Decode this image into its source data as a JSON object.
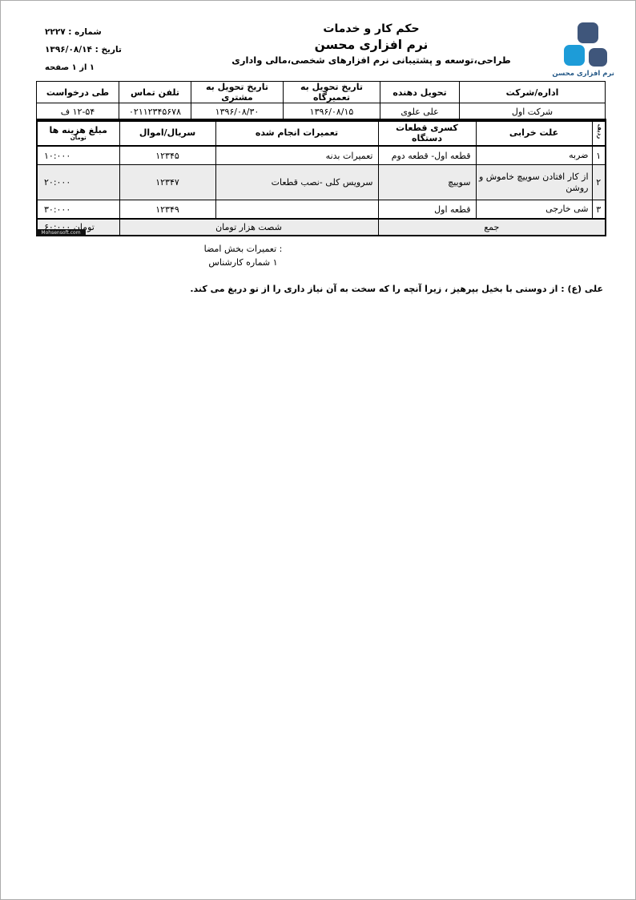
{
  "page": {
    "meta": {
      "number_label": "شماره",
      "number_value": "۲۲۲۷",
      "number_line": "شماره : ۲۲۲۷",
      "date_label": "تاریخ",
      "date_value": "۱۳۹۶/۰۸/۱۴",
      "date_line": "تاریخ : ۱۳۹۶/۰۸/۱۴",
      "page_info": "صفحه ۱ از ۱"
    },
    "title": {
      "line1": "حکم کار و خدمات",
      "line2": "نرم افزاری محسن",
      "line3": "طراحی،توسعه و پشتیبانی نرم افزارهای شخصی،مالی واداری"
    },
    "logo": {
      "text": "نرم افزاری محسن"
    },
    "watermark": "Mohsensoft.com",
    "colors": {
      "logo_dark": "#3f567b",
      "logo_light": "#1d9cd8",
      "logo_text": "#265a88",
      "row_shade": "#ececec",
      "border": "#000000"
    }
  },
  "info_table": [
    {
      "label": "اداره/شرکت",
      "value": "شرکت اول"
    },
    {
      "label": "تحویل دهنده",
      "value": "علی علوی"
    },
    {
      "label": "تاریخ تحویل به تعمیرگاه",
      "value": "۱۳۹۶/۰۸/۱۵"
    },
    {
      "label": "تاریخ تحویل به مشتری",
      "value": "۱۳۹۶/۰۸/۳۰"
    },
    {
      "label": "تلفن تماس",
      "value": "۰۲۱۱۲۳۴۵۶۷۸"
    },
    {
      "label": "طی درخواست",
      "value": "ف ۱۲-۵۴"
    }
  ],
  "main_table": {
    "headers": {
      "row": "ردیف",
      "cause": "علت خرابی",
      "missing": "کسری قطعات دستگاه",
      "repairs": "تعمیرات انجام شده",
      "serial": "سریال/اموال",
      "amount": "مبلغ هزینه ها",
      "amount_sub": "تومان"
    },
    "rows": [
      {
        "no": "۱",
        "cause": "ضربه",
        "missing": "قطعه اول- قطعه دوم",
        "repairs": "تعمیرات بدنه",
        "serial": "۱۲۳۴۵",
        "amount": "۱۰:۰۰۰"
      },
      {
        "no": "۲",
        "cause": "از کار افتادن سوییچ خاموش و روشن",
        "missing": "سوییچ",
        "repairs": "سرویس کلی -نصب قطعات",
        "serial": "۱۲۳۴۷",
        "amount": "۲۰:۰۰۰"
      },
      {
        "no": "۳",
        "cause": "شی خارجی",
        "missing": "قطعه اول",
        "repairs": "",
        "serial": "۱۲۳۴۹",
        "amount": "۳۰:۰۰۰"
      }
    ],
    "total": {
      "label": "جمع",
      "words": "شصت هزار تومان",
      "amount": "۶۰:۰۰۰ تومان"
    }
  },
  "signature": {
    "line1": "امضا بخش تعمیرات:",
    "line2": "کارشناس شماره ۱"
  },
  "quote": "علی (ع) : از دوستی با بخیل بپرهیز ، زیرا آنچه را که سخت به آن نیاز داری را از تو دریغ می کند."
}
